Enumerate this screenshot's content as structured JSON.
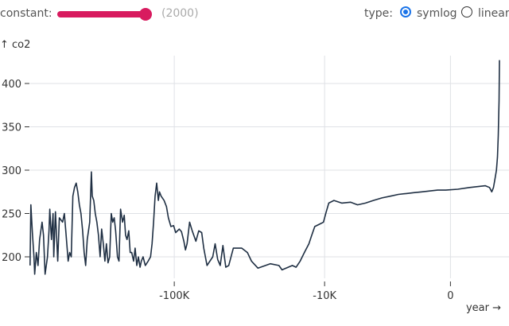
{
  "controls": {
    "constant_label": "constant:",
    "constant_value": 2000,
    "constant_display": "(2000)",
    "constant_fill": 1.0,
    "type_label": "type:",
    "type_options": [
      "symlog",
      "linear"
    ],
    "type_selected": "symlog",
    "accent_color": "#d81b5f",
    "radio_color": "#1a73e8"
  },
  "chart_data": {
    "type": "line",
    "xlabel": "year →",
    "ylabel": "↑ co2",
    "x_scale": "symlog",
    "symlog_constant": 2000,
    "xlim": [
      -800000,
      2018
    ],
    "ylim": [
      170,
      430
    ],
    "x_ticks": [
      {
        "value": -100000,
        "label": "-100K"
      },
      {
        "value": -10000,
        "label": "-10K"
      },
      {
        "value": 0,
        "label": "0"
      }
    ],
    "y_ticks": [
      {
        "value": 200,
        "label": "200"
      },
      {
        "value": 250,
        "label": "250"
      },
      {
        "value": 300,
        "label": "300"
      },
      {
        "value": 350,
        "label": "350"
      },
      {
        "value": 400,
        "label": "400"
      }
    ],
    "grid": true,
    "line_color": "#1f2f43",
    "series": [
      {
        "points": [
          [
            -793000,
            190
          ],
          [
            -784000,
            260
          ],
          [
            -767000,
            228
          ],
          [
            -750000,
            200
          ],
          [
            -742000,
            180
          ],
          [
            -725000,
            205
          ],
          [
            -708000,
            190
          ],
          [
            -692000,
            220
          ],
          [
            -668000,
            240
          ],
          [
            -654000,
            225
          ],
          [
            -640000,
            180
          ],
          [
            -618000,
            200
          ],
          [
            -605000,
            230
          ],
          [
            -598000,
            255
          ],
          [
            -584000,
            220
          ],
          [
            -571000,
            250
          ],
          [
            -565000,
            200
          ],
          [
            -552000,
            252
          ],
          [
            -534000,
            195
          ],
          [
            -522000,
            245
          ],
          [
            -498000,
            240
          ],
          [
            -486000,
            250
          ],
          [
            -476000,
            230
          ],
          [
            -460000,
            195
          ],
          [
            -450000,
            205
          ],
          [
            -440000,
            200
          ],
          [
            -430000,
            270
          ],
          [
            -420000,
            280
          ],
          [
            -410000,
            285
          ],
          [
            -401000,
            275
          ],
          [
            -392000,
            260
          ],
          [
            -383000,
            250
          ],
          [
            -374000,
            230
          ],
          [
            -366000,
            205
          ],
          [
            -358000,
            190
          ],
          [
            -350000,
            220
          ],
          [
            -338000,
            240
          ],
          [
            -330000,
            298
          ],
          [
            -326000,
            270
          ],
          [
            -319000,
            265
          ],
          [
            -312000,
            250
          ],
          [
            -305000,
            240
          ],
          [
            -298000,
            225
          ],
          [
            -291000,
            200
          ],
          [
            -285000,
            232
          ],
          [
            -278000,
            215
          ],
          [
            -272000,
            195
          ],
          [
            -266000,
            215
          ],
          [
            -260000,
            193
          ],
          [
            -254000,
            200
          ],
          [
            -248000,
            250
          ],
          [
            -243000,
            240
          ],
          [
            -238000,
            245
          ],
          [
            -233000,
            230
          ],
          [
            -227000,
            200
          ],
          [
            -222000,
            195
          ],
          [
            -217000,
            255
          ],
          [
            -211000,
            240
          ],
          [
            -206000,
            248
          ],
          [
            -202000,
            225
          ],
          [
            -198000,
            220
          ],
          [
            -193000,
            230
          ],
          [
            -189000,
            205
          ],
          [
            -185000,
            205
          ],
          [
            -180000,
            195
          ],
          [
            -176000,
            210
          ],
          [
            -172000,
            190
          ],
          [
            -168000,
            200
          ],
          [
            -164000,
            188
          ],
          [
            -161000,
            195
          ],
          [
            -157000,
            200
          ],
          [
            -152000,
            190
          ],
          [
            -146000,
            195
          ],
          [
            -141000,
            200
          ],
          [
            -138000,
            215
          ],
          [
            -135000,
            240
          ],
          [
            -132000,
            270
          ],
          [
            -129000,
            285
          ],
          [
            -126000,
            265
          ],
          [
            -124000,
            275
          ],
          [
            -121000,
            270
          ],
          [
            -116000,
            265
          ],
          [
            -112000,
            258
          ],
          [
            -109000,
            245
          ],
          [
            -105000,
            235
          ],
          [
            -101000,
            236
          ],
          [
            -98000,
            228
          ],
          [
            -93000,
            232
          ],
          [
            -90000,
            229
          ],
          [
            -87000,
            218
          ],
          [
            -85000,
            208
          ],
          [
            -83000,
            215
          ],
          [
            -80000,
            240
          ],
          [
            -77000,
            230
          ],
          [
            -73000,
            218
          ],
          [
            -70000,
            230
          ],
          [
            -67000,
            228
          ],
          [
            -65000,
            210
          ],
          [
            -62000,
            190
          ],
          [
            -57000,
            200
          ],
          [
            -55000,
            215
          ],
          [
            -53000,
            197
          ],
          [
            -51000,
            190
          ],
          [
            -49000,
            213
          ],
          [
            -47000,
            188
          ],
          [
            -45000,
            190
          ],
          [
            -42000,
            210
          ],
          [
            -37000,
            210
          ],
          [
            -34000,
            205
          ],
          [
            -32000,
            195
          ],
          [
            -29000,
            187
          ],
          [
            -24000,
            192
          ],
          [
            -21000,
            190
          ],
          [
            -20000,
            185
          ],
          [
            -17000,
            190
          ],
          [
            -16000,
            188
          ],
          [
            -15000,
            195
          ],
          [
            -14000,
            205
          ],
          [
            -13000,
            215
          ],
          [
            -12400,
            225
          ],
          [
            -11800,
            235
          ],
          [
            -10800,
            238
          ],
          [
            -10200,
            240
          ],
          [
            -9800,
            250
          ],
          [
            -9300,
            262
          ],
          [
            -8500,
            265
          ],
          [
            -7400,
            262
          ],
          [
            -6300,
            263
          ],
          [
            -5500,
            260
          ],
          [
            -4700,
            262
          ],
          [
            -4000,
            265
          ],
          [
            -3300,
            268
          ],
          [
            -2700,
            270
          ],
          [
            -2200,
            272
          ],
          [
            -1750,
            273
          ],
          [
            -1370,
            274
          ],
          [
            -1010,
            275
          ],
          [
            -690,
            276
          ],
          [
            -400,
            277
          ],
          [
            -140,
            277
          ],
          [
            217,
            278
          ],
          [
            624,
            280
          ],
          [
            940,
            281
          ],
          [
            1290,
            282
          ],
          [
            1486,
            280
          ],
          [
            1600,
            275
          ],
          [
            1690,
            280
          ],
          [
            1770,
            290
          ],
          [
            1850,
            300
          ],
          [
            1904,
            315
          ],
          [
            1950,
            340
          ],
          [
            1995,
            380
          ],
          [
            2018,
            427
          ]
        ]
      }
    ]
  }
}
